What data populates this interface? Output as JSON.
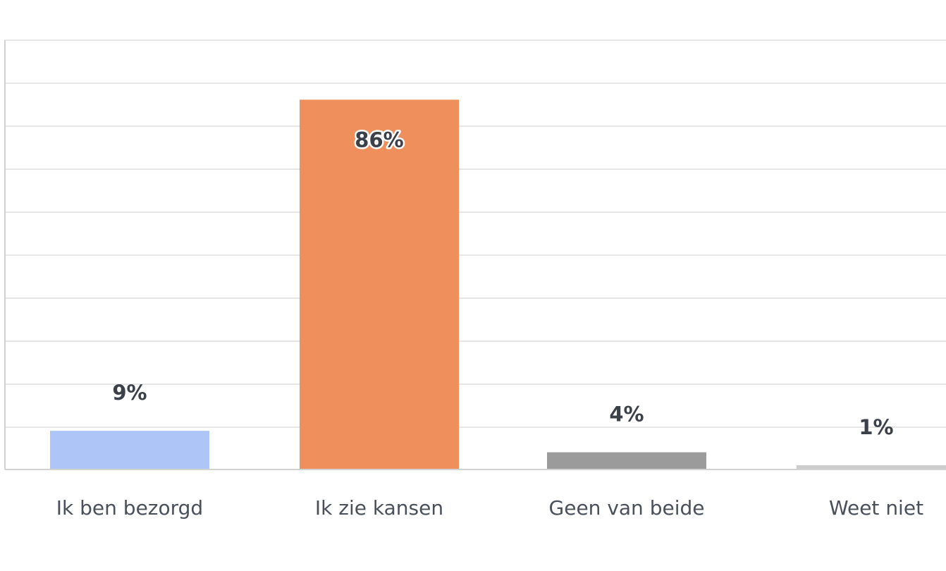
{
  "chart_data": {
    "type": "bar",
    "categories": [
      "Ik ben bezorgd",
      "Ik zie kansen",
      "Geen van beide",
      "Weet niet"
    ],
    "values": [
      9,
      86,
      4,
      1
    ],
    "value_labels": [
      "9%",
      "86%",
      "4%",
      "1%"
    ],
    "unit": "%",
    "ylim": [
      0,
      100
    ],
    "grid": true,
    "colors": [
      "#aec6f7",
      "#ef8f5c",
      "#9b9b9b",
      "#cccccc"
    ],
    "title": "",
    "xlabel": "",
    "ylabel": ""
  }
}
